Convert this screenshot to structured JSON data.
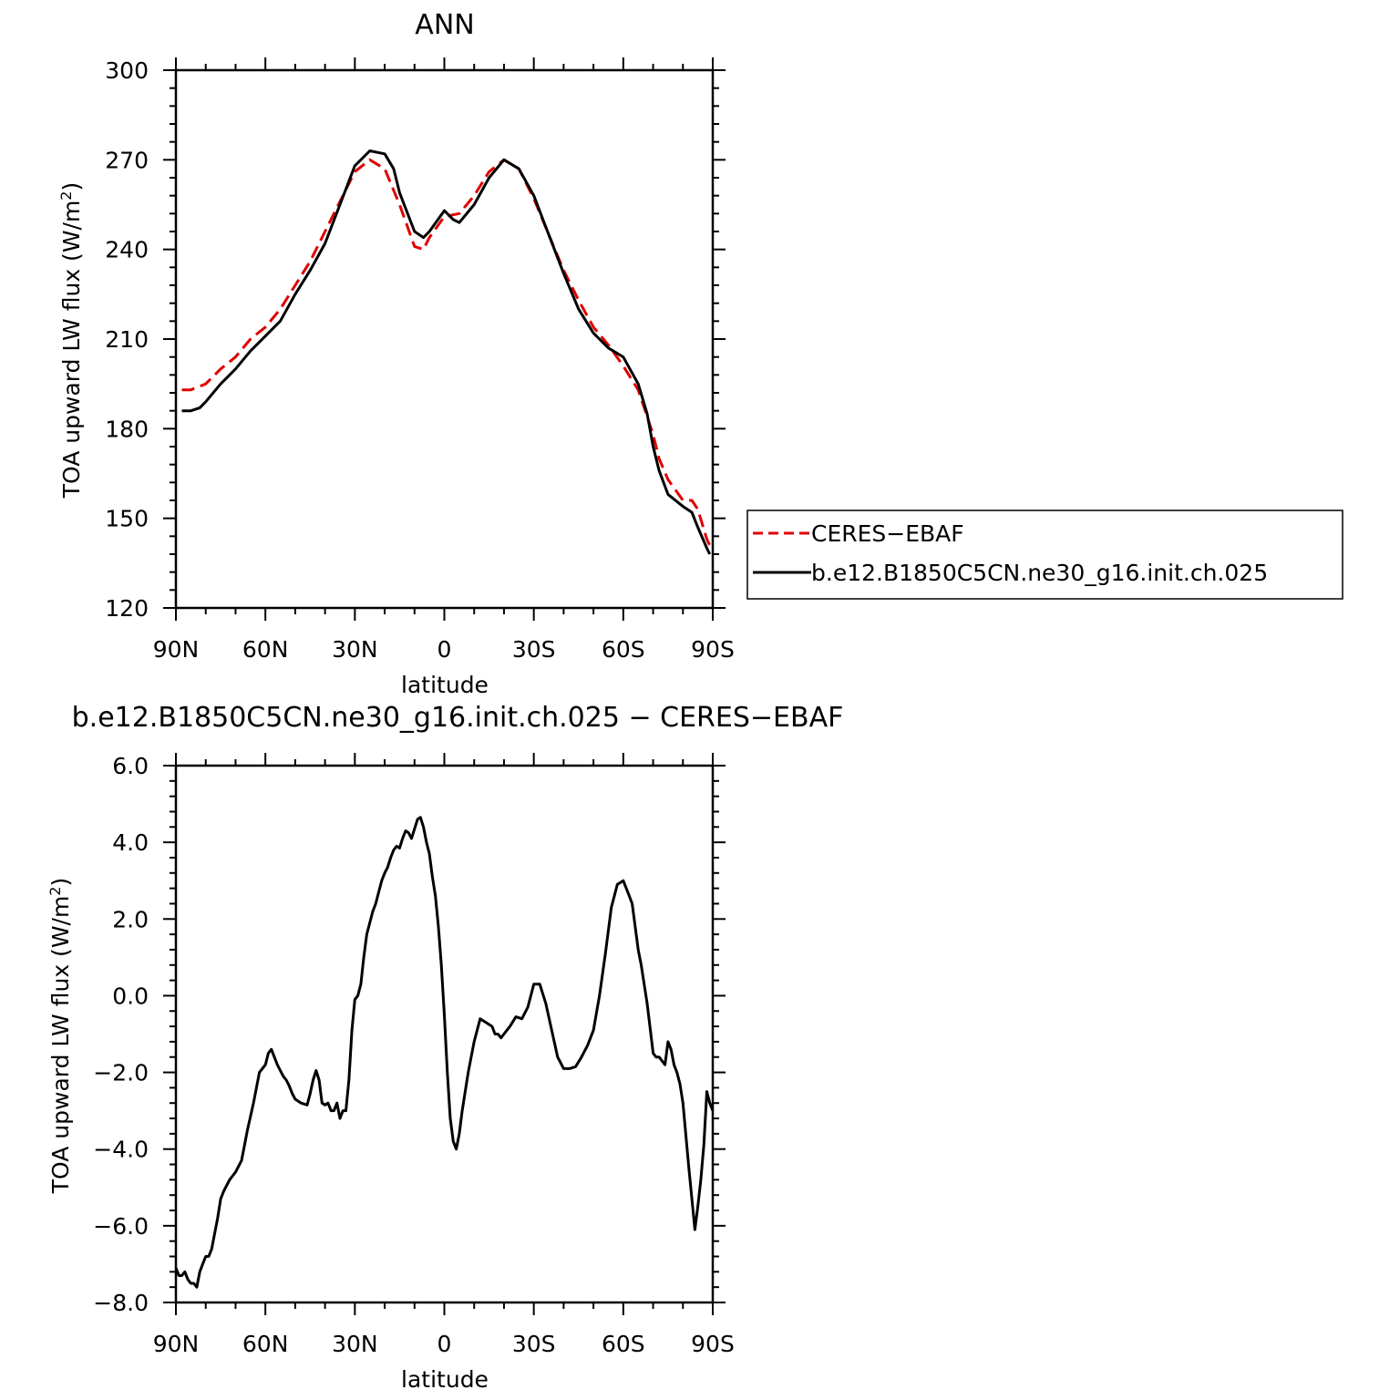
{
  "chart_data": [
    {
      "type": "line",
      "title": "ANN",
      "xlabel": "latitude",
      "ylabel": "TOA upward LW flux (W/m",
      "ylabel_sup": "2",
      "ylabel_close": ")",
      "xlim": [
        90,
        -90
      ],
      "ylim": [
        120,
        300
      ],
      "xticks": [
        90,
        60,
        30,
        0,
        -30,
        -60,
        -90
      ],
      "xtick_labels": [
        "90N",
        "60N",
        "30N",
        "0",
        "30S",
        "60S",
        "90S"
      ],
      "yticks": [
        120,
        150,
        180,
        210,
        240,
        270,
        300
      ],
      "ytick_labels": [
        "120",
        "150",
        "180",
        "210",
        "240",
        "270",
        "300"
      ],
      "legend_position": "right",
      "series": [
        {
          "name": "CERES−EBAF",
          "color": "#e00000",
          "dash": "dashed",
          "x": [
            88,
            85,
            80,
            75,
            70,
            65,
            60,
            55,
            50,
            45,
            40,
            35,
            30,
            25,
            20,
            15,
            10,
            7,
            5,
            0,
            -5,
            -10,
            -15,
            -20,
            -25,
            -30,
            -35,
            -40,
            -45,
            -50,
            -55,
            -60,
            -65,
            -70,
            -72,
            -75,
            -80,
            -83,
            -85,
            -88,
            -89
          ],
          "y": [
            193,
            193,
            195,
            200,
            204,
            210,
            214,
            220,
            228,
            236,
            246,
            256,
            266,
            270,
            267,
            255,
            241,
            240,
            244,
            251,
            252,
            258,
            266,
            270,
            267,
            257,
            245,
            233,
            223,
            214,
            208,
            201,
            193,
            178,
            170,
            163,
            156,
            156,
            153,
            143,
            141
          ]
        },
        {
          "name": "b.e12.B1850C5CN.ne30_g16.init.ch.025",
          "color": "#000000",
          "dash": "solid",
          "x": [
            88,
            85,
            82,
            80,
            75,
            70,
            65,
            60,
            55,
            50,
            45,
            40,
            35,
            30,
            25,
            20,
            17,
            15,
            10,
            7,
            5,
            0,
            -3,
            -5,
            -10,
            -15,
            -20,
            -25,
            -30,
            -35,
            -40,
            -45,
            -50,
            -55,
            -60,
            -65,
            -68,
            -70,
            -72,
            -75,
            -80,
            -83,
            -85,
            -88,
            -89
          ],
          "y": [
            186,
            186,
            187,
            189,
            195,
            200,
            206,
            211,
            216,
            225,
            233,
            242,
            255,
            268,
            273,
            272,
            267,
            259,
            246,
            244,
            246,
            253,
            250,
            249,
            255,
            264,
            270,
            267,
            258,
            245,
            232,
            220,
            212,
            207,
            204,
            195,
            185,
            174,
            166,
            158,
            154,
            152,
            147,
            140,
            138
          ]
        }
      ]
    },
    {
      "type": "line",
      "title": "b.e12.B1850C5CN.ne30_g16.init.ch.025 − CERES−EBAF",
      "xlabel": "latitude",
      "ylabel": "TOA upward LW flux (W/m",
      "ylabel_sup": "2",
      "ylabel_close": ")",
      "xlim": [
        90,
        -90
      ],
      "ylim": [
        -8,
        6
      ],
      "xticks": [
        90,
        60,
        30,
        0,
        -30,
        -60,
        -90
      ],
      "xtick_labels": [
        "90N",
        "60N",
        "30N",
        "0",
        "30S",
        "60S",
        "90S"
      ],
      "yticks": [
        -8,
        -6,
        -4,
        -2,
        0,
        2,
        4,
        6
      ],
      "ytick_labels": [
        "−8.0",
        "−6.0",
        "−4.0",
        "−2.0",
        "0.0",
        "2.0",
        "4.0",
        "6.0"
      ],
      "series": [
        {
          "color": "#000000",
          "dash": "solid",
          "x": [
            90,
            89,
            88,
            87,
            86,
            85,
            84,
            83,
            82,
            81,
            80,
            79,
            78,
            77,
            76,
            75,
            74,
            72,
            70,
            68,
            66,
            64,
            62,
            60,
            59,
            58,
            57,
            56,
            55,
            54,
            53,
            52,
            51,
            50,
            48,
            46,
            45,
            44,
            43,
            42,
            41,
            40,
            39,
            38,
            37,
            36,
            35,
            34,
            33,
            32,
            31,
            30,
            29,
            28,
            27,
            26,
            25,
            24,
            23,
            22,
            21,
            20,
            19,
            18,
            17,
            16,
            15,
            14,
            13,
            12,
            11,
            10,
            9,
            8,
            7,
            6,
            5,
            4,
            3,
            2,
            1,
            0,
            -1,
            -2,
            -3,
            -4,
            -5,
            -6,
            -7,
            -8,
            -10,
            -12,
            -14,
            -16,
            -17,
            -18,
            -19,
            -20,
            -22,
            -24,
            -26,
            -28,
            -30,
            -32,
            -34,
            -36,
            -38,
            -40,
            -42,
            -44,
            -46,
            -48,
            -50,
            -52,
            -54,
            -56,
            -58,
            -60,
            -61,
            -62,
            -63,
            -64,
            -65,
            -66,
            -68,
            -70,
            -71,
            -72,
            -73,
            -74,
            -75,
            -76,
            -77,
            -78,
            -79,
            -80,
            -82,
            -84,
            -85,
            -86,
            -87,
            -88,
            -89,
            -90
          ],
          "y": [
            -7.1,
            -7.3,
            -7.3,
            -7.2,
            -7.4,
            -7.5,
            -7.5,
            -7.6,
            -7.2,
            -7.0,
            -6.8,
            -6.8,
            -6.6,
            -6.2,
            -5.8,
            -5.3,
            -5.1,
            -4.8,
            -4.6,
            -4.3,
            -3.5,
            -2.8,
            -2.0,
            -1.8,
            -1.5,
            -1.4,
            -1.6,
            -1.8,
            -1.95,
            -2.1,
            -2.2,
            -2.35,
            -2.55,
            -2.7,
            -2.8,
            -2.85,
            -2.55,
            -2.2,
            -1.95,
            -2.2,
            -2.8,
            -2.85,
            -2.8,
            -3.0,
            -3.0,
            -2.8,
            -3.2,
            -3.0,
            -3.0,
            -2.2,
            -0.9,
            -0.1,
            0.0,
            0.3,
            1.0,
            1.6,
            1.9,
            2.2,
            2.4,
            2.7,
            3.0,
            3.2,
            3.35,
            3.6,
            3.8,
            3.9,
            3.85,
            4.1,
            4.3,
            4.25,
            4.1,
            4.35,
            4.6,
            4.65,
            4.4,
            4.0,
            3.7,
            3.1,
            2.6,
            1.8,
            0.8,
            -0.5,
            -2.0,
            -3.2,
            -3.8,
            -4.0,
            -3.6,
            -3.0,
            -2.5,
            -2.0,
            -1.2,
            -0.6,
            -0.7,
            -0.8,
            -1.0,
            -1.0,
            -1.1,
            -1.0,
            -0.8,
            -0.55,
            -0.6,
            -0.3,
            0.3,
            0.3,
            -0.2,
            -0.9,
            -1.6,
            -1.9,
            -1.9,
            -1.85,
            -1.6,
            -1.3,
            -0.9,
            0.0,
            1.1,
            2.3,
            2.9,
            3.0,
            2.8,
            2.6,
            2.4,
            1.8,
            1.2,
            0.8,
            -0.2,
            -1.5,
            -1.6,
            -1.6,
            -1.7,
            -1.8,
            -1.2,
            -1.4,
            -1.8,
            -2.0,
            -2.3,
            -2.8,
            -4.5,
            -6.1,
            -5.5,
            -4.8,
            -3.9,
            -2.5,
            -2.8,
            -3.0
          ]
        }
      ]
    }
  ]
}
